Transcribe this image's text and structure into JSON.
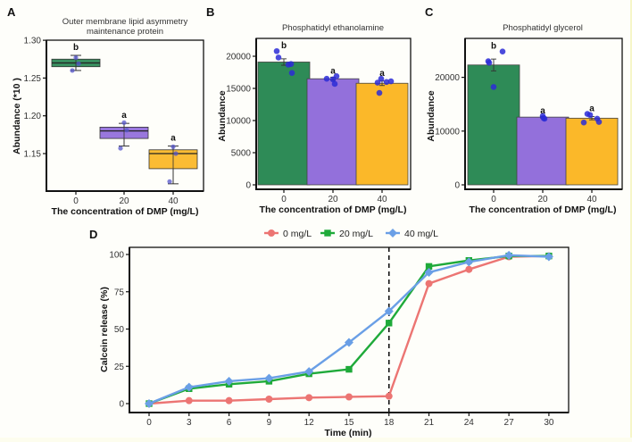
{
  "colors": {
    "green": "#2e8b57",
    "purple": "#9370db",
    "orange": "#fbb829",
    "point": "#2b2bd6",
    "red_line": "#ec7573",
    "green_line": "#1faa3a",
    "blue_line": "#6a9fe6"
  },
  "chart_data": [
    {
      "panel": "A",
      "type": "box",
      "title": "Outer membrane lipid asymmetry maintenance protein",
      "title_lines": [
        "Outer membrane lipid asymmetry",
        "maintenance protein"
      ],
      "xlabel": "The concentration of DMP (mg/L)",
      "ylabel": "Abundance (*10 )",
      "categories": [
        "0",
        "20",
        "40"
      ],
      "ylim": [
        1.1,
        1.3
      ],
      "yticks": [
        "1.15",
        "1.20",
        "1.25",
        "1.30"
      ],
      "ytick_values": [
        1.15,
        1.2,
        1.25,
        1.3
      ],
      "boxes": [
        {
          "q1": 1.265,
          "median": 1.27,
          "q3": 1.275,
          "min": 1.26,
          "max": 1.28,
          "points": [
            1.26,
            1.269,
            1.277
          ],
          "color": "green",
          "sig": "b"
        },
        {
          "q1": 1.17,
          "median": 1.18,
          "q3": 1.185,
          "min": 1.16,
          "max": 1.19,
          "points": [
            1.157,
            1.181,
            1.191
          ],
          "color": "purple",
          "sig": "a"
        },
        {
          "q1": 1.13,
          "median": 1.15,
          "q3": 1.155,
          "min": 1.11,
          "max": 1.16,
          "points": [
            1.113,
            1.15,
            1.159
          ],
          "color": "orange",
          "sig": "a"
        }
      ]
    },
    {
      "panel": "B",
      "type": "bar",
      "title": "Phosphatidyl ethanolamine",
      "xlabel": "The concentration of DMP (mg/L)",
      "ylabel": "Abundance",
      "categories": [
        "0",
        "20",
        "40"
      ],
      "ylim": [
        0,
        22500
      ],
      "yticks": [
        "0",
        "5000",
        "10000",
        "15000",
        "20000"
      ],
      "ytick_values": [
        0,
        5000,
        10000,
        15000,
        20000
      ],
      "values": [
        19100,
        16500,
        15800
      ],
      "errors": [
        500,
        250,
        350
      ],
      "points": [
        [
          20800,
          19800,
          18700,
          18800,
          17400
        ],
        [
          16500,
          16400,
          16900,
          15700
        ],
        [
          15900,
          16500,
          16000,
          16100,
          14300
        ]
      ],
      "sig": [
        "b",
        "a",
        "a"
      ],
      "bar_colors": [
        "green",
        "purple",
        "orange"
      ]
    },
    {
      "panel": "C",
      "type": "bar",
      "title": "Phosphatidyl glycerol",
      "xlabel": "The concentration of DMP (mg/L)",
      "ylabel": "Abundance",
      "categories": [
        "0",
        "20",
        "40"
      ],
      "ylim": [
        0,
        27000
      ],
      "yticks": [
        "0",
        "10000",
        "20000"
      ],
      "ytick_values": [
        0,
        10000,
        20000
      ],
      "values": [
        22300,
        12600,
        12400
      ],
      "errors": [
        1100,
        150,
        300
      ],
      "points": [
        [
          24800,
          23000,
          22700,
          18200
        ],
        [
          12800,
          12400,
          12300
        ],
        [
          13200,
          13000,
          12300,
          11700,
          11600
        ]
      ],
      "sig": [
        "b",
        "a",
        "a"
      ],
      "bar_colors": [
        "green",
        "purple",
        "orange"
      ]
    },
    {
      "panel": "D",
      "type": "line",
      "xlabel": "Time (min)",
      "ylabel": "Calcein release (%)",
      "x": [
        0,
        3,
        6,
        9,
        12,
        15,
        18,
        21,
        24,
        27,
        30
      ],
      "xticks": [
        "0",
        "3",
        "6",
        "9",
        "12",
        "15",
        "18",
        "21",
        "24",
        "27",
        "30"
      ],
      "ylim": [
        0,
        100
      ],
      "yticks": [
        "0",
        "25",
        "50",
        "75",
        "100"
      ],
      "ytick_values": [
        0,
        25,
        50,
        75,
        100
      ],
      "vline_x": 18,
      "legend_position": "top",
      "series": [
        {
          "name": "0 mg/L",
          "marker": "circle",
          "color": "red_line",
          "values": [
            0,
            2,
            2,
            3,
            4,
            4.5,
            5,
            80.5,
            90,
            98.5,
            99
          ]
        },
        {
          "name": "20 mg/L",
          "marker": "square",
          "color": "green_line",
          "values": [
            0,
            10,
            13,
            15,
            20,
            23,
            54,
            92,
            96,
            99,
            99
          ]
        },
        {
          "name": "40 mg/L",
          "marker": "diamond",
          "color": "blue_line",
          "values": [
            0,
            11,
            15,
            17,
            21.5,
            41,
            62,
            88,
            95,
            99.5,
            98.5
          ]
        }
      ]
    }
  ],
  "panel_labels": [
    "A",
    "B",
    "C",
    "D"
  ]
}
